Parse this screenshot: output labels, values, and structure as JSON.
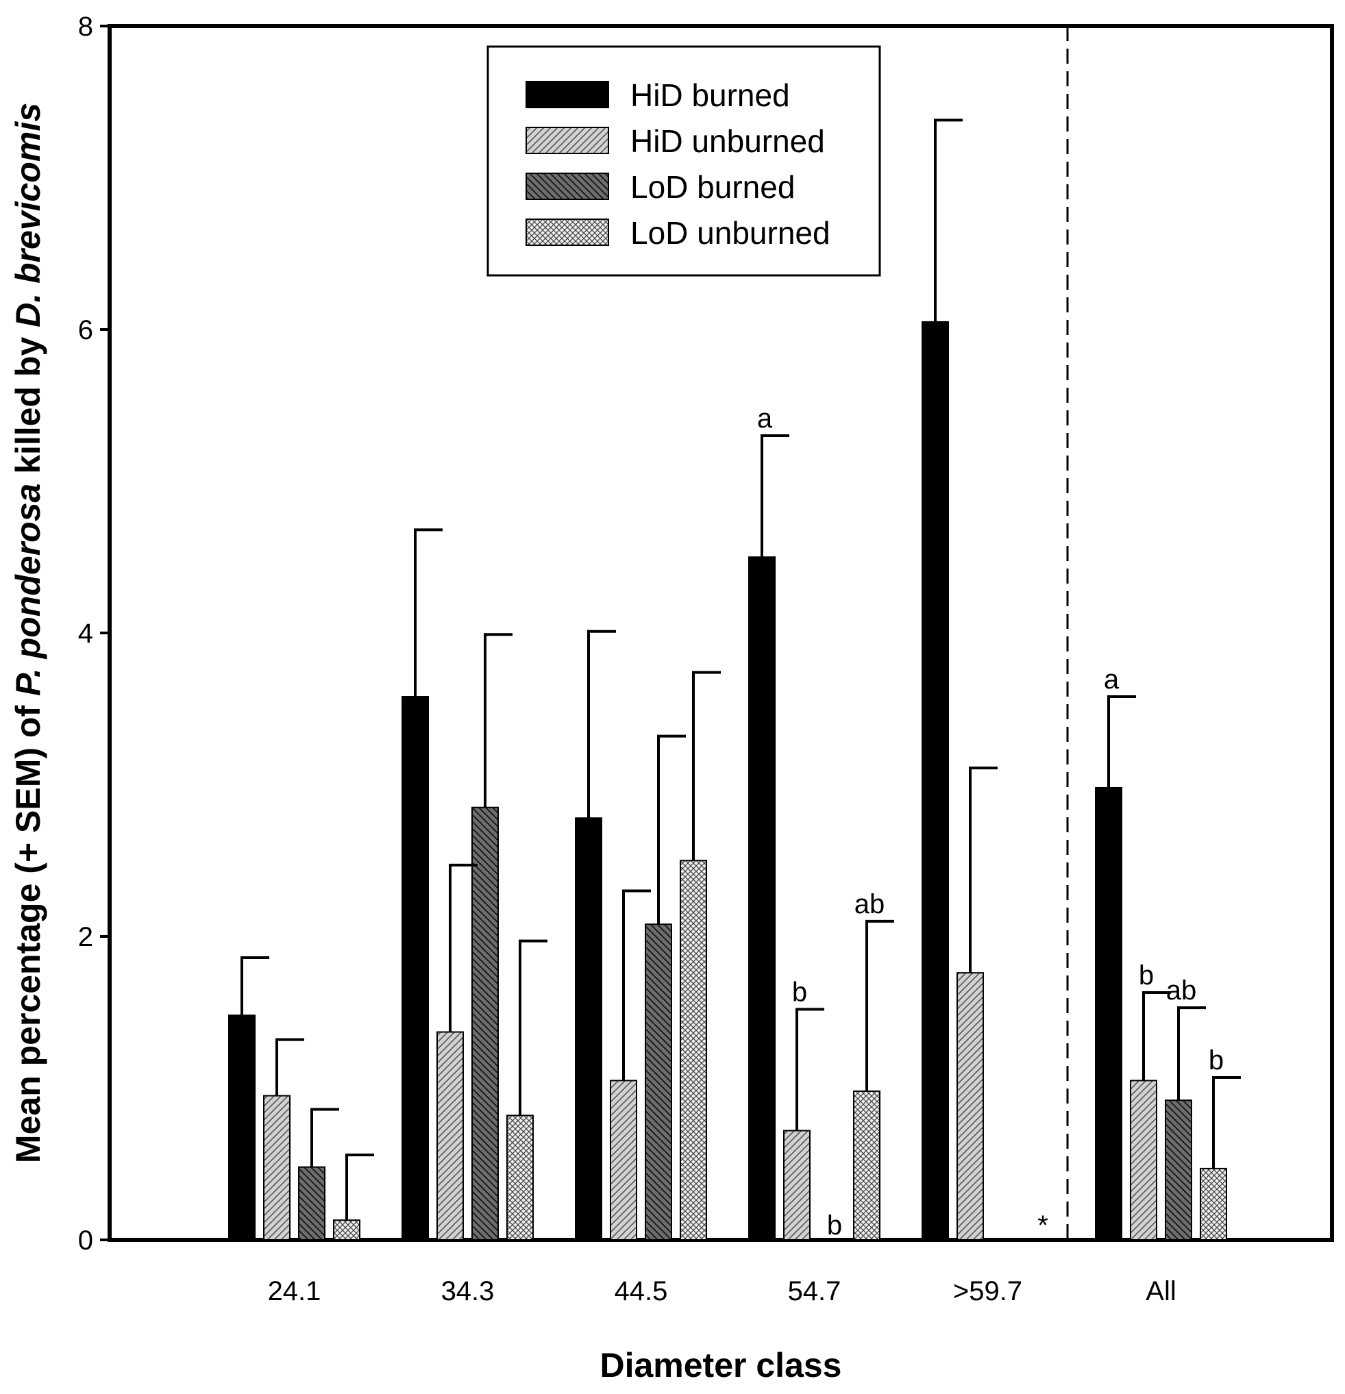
{
  "chart_data": {
    "type": "bar",
    "xlabel": "Diameter class",
    "ylabel_parts": [
      {
        "text": "Mean percentage (+ SEM) of ",
        "italic": false
      },
      {
        "text": "P. ponderosa",
        "italic": true
      },
      {
        "text": " killed by ",
        "italic": false
      },
      {
        "text": "D. brevicomis",
        "italic": true
      }
    ],
    "ylim": [
      0,
      8
    ],
    "yticks": [
      "0",
      "2",
      "4",
      "6",
      "8"
    ],
    "categories": [
      "24.1",
      "34.3",
      "44.5",
      "54.7",
      ">59.7",
      "All"
    ],
    "divider_after_category": ">59.7",
    "series": [
      {
        "name": "HiD burned",
        "pattern": "solid-black",
        "values": [
          1.48,
          3.58,
          2.78,
          4.5,
          6.05,
          2.98
        ],
        "errors": [
          0.38,
          1.1,
          1.23,
          0.8,
          1.33,
          0.6
        ]
      },
      {
        "name": "HiD unburned",
        "pattern": "light-hatch",
        "values": [
          0.95,
          1.37,
          1.05,
          0.72,
          1.76,
          1.05
        ],
        "errors": [
          0.37,
          1.1,
          1.25,
          0.8,
          1.35,
          0.58
        ]
      },
      {
        "name": "LoD burned",
        "pattern": "dark-hatch",
        "values": [
          0.48,
          2.85,
          2.08,
          0,
          0,
          0.92
        ],
        "errors": [
          0.38,
          1.14,
          1.24,
          0,
          0,
          0.61
        ]
      },
      {
        "name": "LoD unburned",
        "pattern": "crosshatch",
        "values": [
          0.13,
          0.82,
          2.5,
          0.98,
          0,
          0.47
        ],
        "errors": [
          0.43,
          1.15,
          1.24,
          1.12,
          0,
          0.6
        ]
      }
    ],
    "annotations": [
      {
        "category": "54.7",
        "series": "HiD burned",
        "text": "a"
      },
      {
        "category": "54.7",
        "series": "HiD unburned",
        "text": "b"
      },
      {
        "category": "54.7",
        "series": "LoD burned",
        "text": "b",
        "position": "baseline"
      },
      {
        "category": "54.7",
        "series": "LoD unburned",
        "text": "ab"
      },
      {
        "category": ">59.7",
        "series": "LoD unburned",
        "text": "*",
        "position": "baseline"
      },
      {
        "category": "All",
        "series": "HiD burned",
        "text": "a"
      },
      {
        "category": "All",
        "series": "HiD unburned",
        "text": "b"
      },
      {
        "category": "All",
        "series": "LoD burned",
        "text": "ab"
      },
      {
        "category": "All",
        "series": "LoD unburned",
        "text": "b"
      }
    ],
    "legend": {
      "position": "top-center",
      "entries": [
        "HiD burned",
        "HiD unburned",
        "LoD burned",
        "LoD unburned"
      ]
    }
  }
}
